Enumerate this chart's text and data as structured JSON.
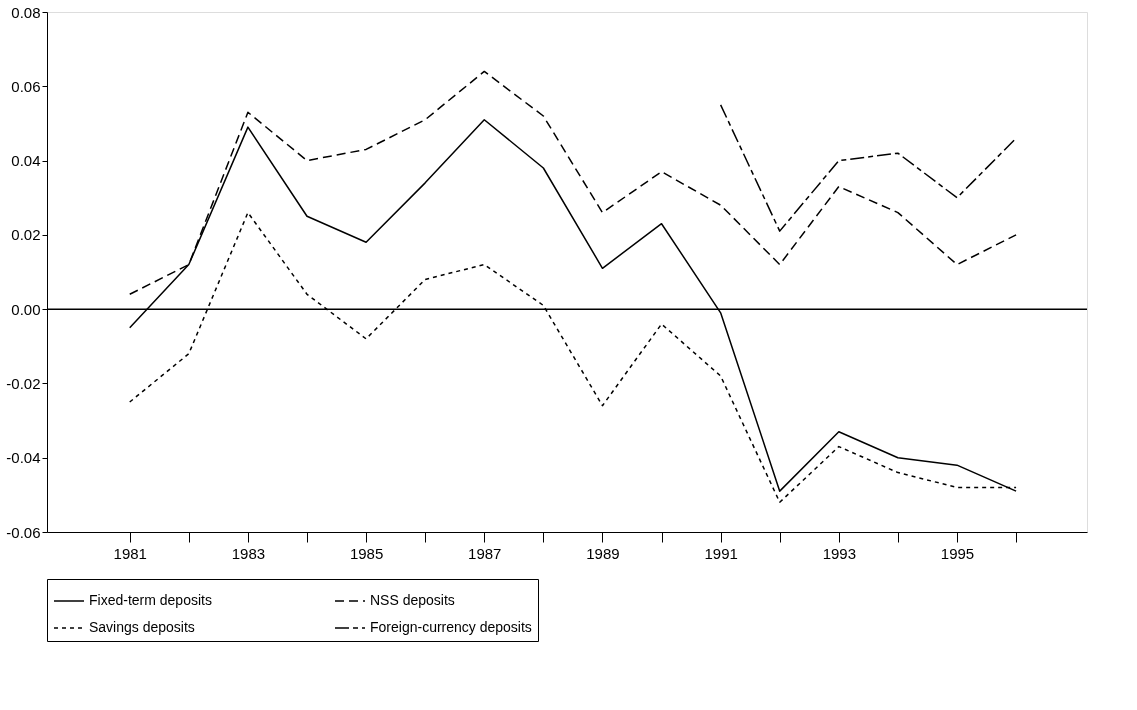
{
  "chart_data": {
    "type": "line",
    "x": [
      1981,
      1982,
      1983,
      1984,
      1985,
      1986,
      1987,
      1988,
      1989,
      1990,
      1991,
      1992,
      1993,
      1994,
      1995,
      1996
    ],
    "series": [
      {
        "name": "Fixed-term deposits",
        "color": "#000000",
        "line_style": "solid",
        "values": [
          -0.005,
          0.012,
          0.049,
          0.025,
          0.018,
          0.034,
          0.051,
          0.038,
          0.011,
          0.023,
          -0.001,
          -0.049,
          -0.033,
          -0.04,
          -0.042,
          -0.049
        ]
      },
      {
        "name": "NSS deposits",
        "color": "#000000",
        "line_style": "dashed",
        "values": [
          0.004,
          0.012,
          0.053,
          0.04,
          0.043,
          0.051,
          0.064,
          0.052,
          0.026,
          0.037,
          0.028,
          0.012,
          0.033,
          0.026,
          0.012,
          0.02
        ]
      },
      {
        "name": "Savings deposits",
        "color": "#000000",
        "line_style": "dotted",
        "values": [
          -0.025,
          -0.012,
          0.026,
          0.004,
          -0.008,
          0.008,
          0.012,
          0.001,
          -0.026,
          -0.004,
          -0.018,
          -0.052,
          -0.037,
          -0.044,
          -0.048,
          -0.048
        ]
      },
      {
        "name": "Foreign-currency deposits",
        "color": "#000000",
        "line_style": "dashdot",
        "values": [
          null,
          null,
          null,
          null,
          null,
          null,
          null,
          null,
          null,
          null,
          0.055,
          0.021,
          0.04,
          0.042,
          0.03,
          0.046
        ]
      }
    ],
    "xlim": [
      1979.6,
      1997.2
    ],
    "xticks": [
      1981,
      {
        "value": 1982,
        "label": null
      },
      1983,
      {
        "value": 1984,
        "label": null
      },
      1985,
      {
        "value": 1986,
        "label": null
      },
      1987,
      {
        "value": 1988,
        "label": null
      },
      1989,
      {
        "value": 1990,
        "label": null
      },
      1991,
      {
        "value": 1992,
        "label": null
      },
      1993,
      {
        "value": 1994,
        "label": null
      },
      1995,
      {
        "value": 1996,
        "label": null
      }
    ],
    "ylim": [
      -0.06,
      0.08
    ],
    "yticks": [
      {
        "value": -0.06,
        "label": "-0.06"
      },
      {
        "value": -0.04,
        "label": "-0.04"
      },
      {
        "value": -0.02,
        "label": "-0.02"
      },
      {
        "value": 0,
        "label": "0.00"
      },
      {
        "value": 0.02,
        "label": "0.02"
      },
      {
        "value": 0.04,
        "label": "0.04"
      },
      {
        "value": 0.06,
        "label": "0.06"
      },
      {
        "value": 0.08,
        "label": "0.08"
      }
    ],
    "ref_lines": [
      {
        "axis": "y",
        "value": 0,
        "color": "#000000",
        "line_style": "solid"
      }
    ],
    "grid": false,
    "legend": "bottom",
    "marker": "none"
  }
}
